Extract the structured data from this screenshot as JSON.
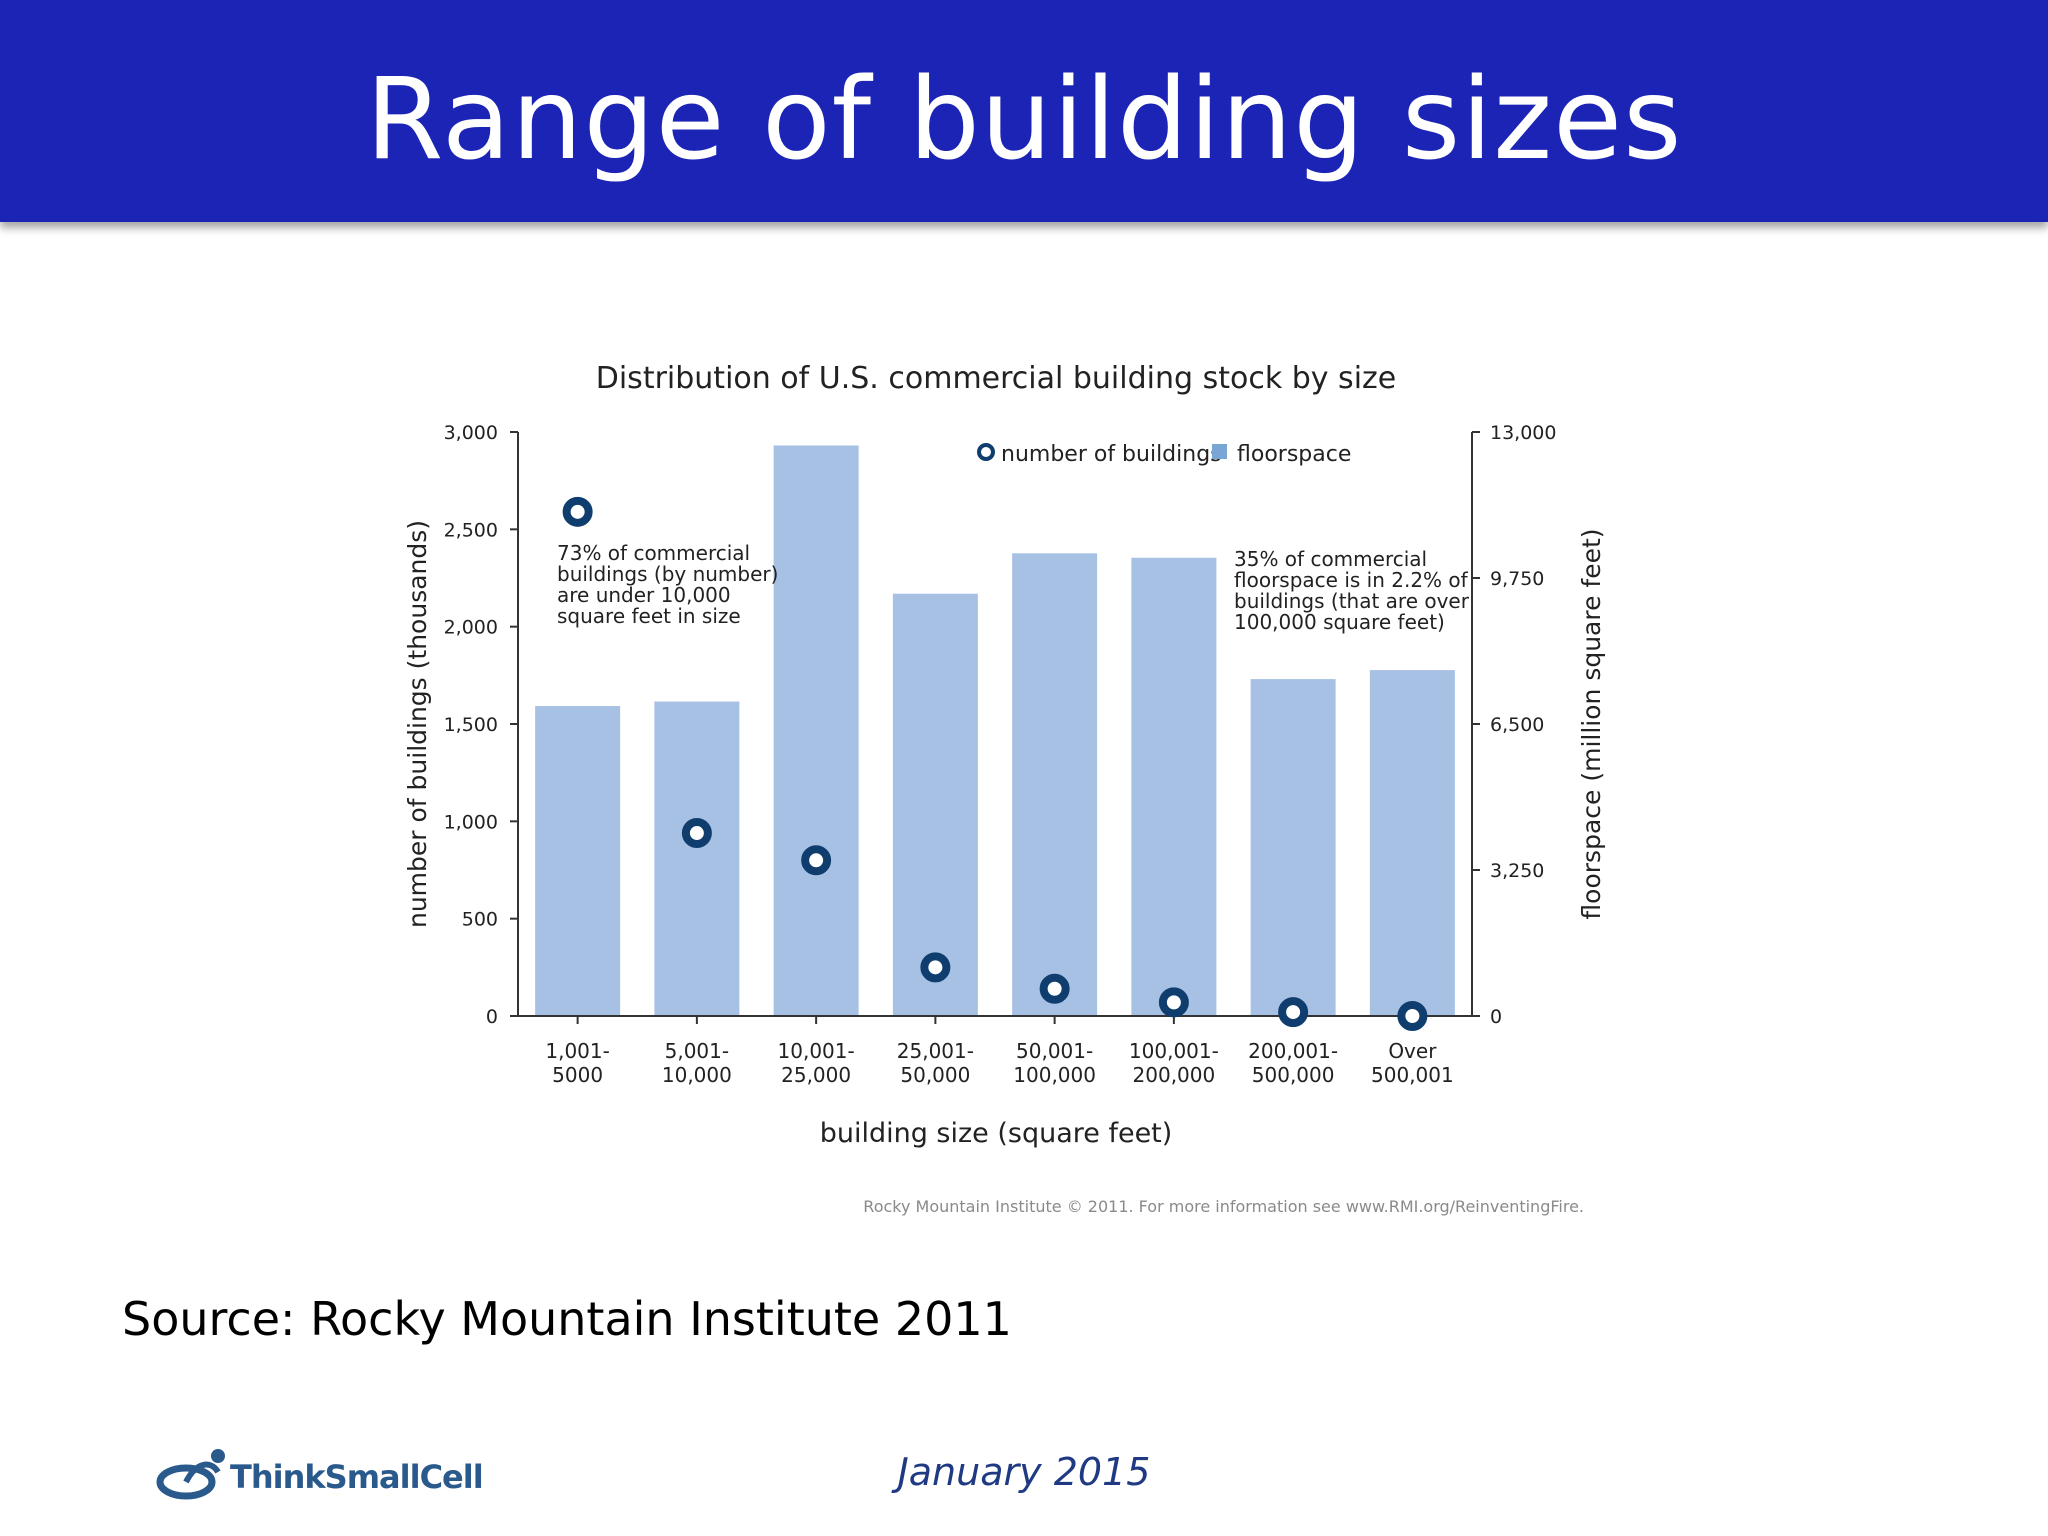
{
  "page": {
    "title": "Range of building sizes",
    "source": "Source: Rocky Mountain Institute 2011",
    "date": "January 2015",
    "logo_text": "ThinkSmallCell"
  },
  "colors": {
    "header_bg": "#1c24b6",
    "bar": "#a6c1e4",
    "marker": "#0f3d6e",
    "axis": "#333333"
  },
  "chart_data": {
    "type": "bar",
    "title": "Distribution of U.S. commercial building stock by size",
    "xlabel": "building size (square feet)",
    "ylabel": "number of buildings (thousands)",
    "y2label": "floorspace (million square feet)",
    "categories": [
      [
        "1,001-",
        "5000"
      ],
      [
        "5,001-",
        "10,000"
      ],
      [
        "10,001-",
        "25,000"
      ],
      [
        "25,001-",
        "50,000"
      ],
      [
        "50,001-",
        "100,000"
      ],
      [
        "100,001-",
        "200,000"
      ],
      [
        "200,001-",
        "500,000"
      ],
      [
        "Over",
        "500,001"
      ]
    ],
    "y_ticks": [
      "0",
      "500",
      "1,000",
      "1,500",
      "2,000",
      "2,500",
      "3,000"
    ],
    "y2_ticks": [
      "0",
      "3,250",
      "6,500",
      "9,750",
      "13,000"
    ],
    "ylim": [
      0,
      3000
    ],
    "y2lim": [
      0,
      13000
    ],
    "series": [
      {
        "name": "floorspace",
        "kind": "bar",
        "axis": "right",
        "values": [
          6900,
          7000,
          12700,
          9400,
          10300,
          10200,
          7500,
          7700
        ]
      },
      {
        "name": "number of buildings",
        "kind": "point",
        "axis": "left",
        "values": [
          2590,
          940,
          800,
          250,
          140,
          70,
          20,
          0
        ]
      }
    ],
    "annotations": [
      {
        "lines": [
          "73% of commercial",
          "buildings (by number)",
          "are under 10,000",
          "square feet in size"
        ],
        "position": "upper-left"
      },
      {
        "lines": [
          "35% of commercial",
          "floorspace is in 2.2% of",
          "buildings (that are over",
          "100,000 square feet)"
        ],
        "position": "upper-right"
      }
    ],
    "legend": {
      "position": "top-right"
    },
    "credit": "Rocky Mountain Institute © 2011. For more information see www.RMI.org/ReinventingFire."
  }
}
